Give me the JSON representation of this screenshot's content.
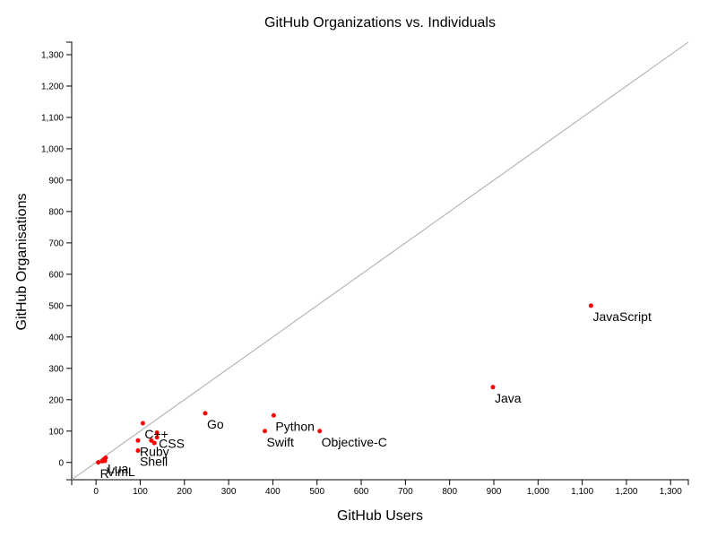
{
  "chart_data": {
    "type": "scatter",
    "title": "GitHub Organizations vs. Individuals",
    "xlabel": "GitHub Users",
    "ylabel": "GitHub Organisations",
    "xlim": [
      -55,
      1340
    ],
    "ylim": [
      -55,
      1340
    ],
    "x_ticks": [
      0,
      100,
      200,
      300,
      400,
      500,
      600,
      700,
      800,
      900,
      1000,
      1100,
      1200,
      1300
    ],
    "y_ticks": [
      0,
      100,
      200,
      300,
      400,
      500,
      600,
      700,
      800,
      900,
      1000,
      1100,
      1200,
      1300
    ],
    "x_tick_labels": [
      "0",
      "100",
      "200",
      "300",
      "400",
      "500",
      "600",
      "700",
      "800",
      "900",
      "1,000",
      "1,100",
      "1,200",
      "1,300"
    ],
    "y_tick_labels": [
      "0",
      "100",
      "200",
      "300",
      "400",
      "500",
      "600",
      "700",
      "800",
      "900",
      "1,000",
      "1,100",
      "1,200",
      "1,300"
    ],
    "reference_line": "y = x",
    "grid": false,
    "point_color": "#ff0000",
    "reference_line_color": "#aaaaaa",
    "points": [
      {
        "label": "JavaScript",
        "x": 1120,
        "y": 500
      },
      {
        "label": "Java",
        "x": 898,
        "y": 240
      },
      {
        "label": "Python",
        "x": 402,
        "y": 150
      },
      {
        "label": "Objective-C",
        "x": 506,
        "y": 100
      },
      {
        "label": "Swift",
        "x": 382,
        "y": 100
      },
      {
        "label": "Go",
        "x": 247,
        "y": 157
      },
      {
        "label": "C++",
        "x": 106,
        "y": 125
      },
      {
        "label": "CSS",
        "x": 138,
        "y": 95
      },
      {
        "label": "Ruby",
        "x": 95,
        "y": 70
      },
      {
        "label": "Shell",
        "x": 95,
        "y": 38
      },
      {
        "label": "Lua",
        "x": 22,
        "y": 15
      },
      {
        "label": "VimL",
        "x": 20,
        "y": 5
      },
      {
        "label": "R",
        "x": 5,
        "y": 0
      },
      {
        "label": "",
        "x": 125,
        "y": 70
      },
      {
        "label": "",
        "x": 132,
        "y": 62
      },
      {
        "label": "",
        "x": 138,
        "y": 80
      },
      {
        "label": "",
        "x": 18,
        "y": 10
      },
      {
        "label": "",
        "x": 14,
        "y": 4
      }
    ]
  }
}
